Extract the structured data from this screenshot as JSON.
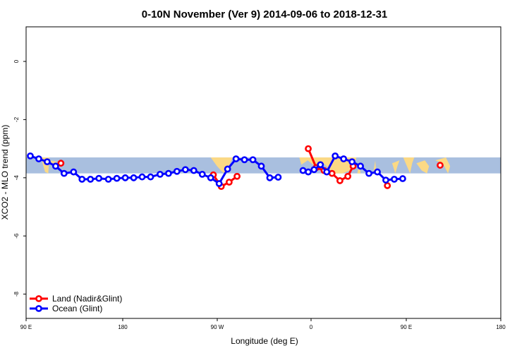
{
  "chart_data": {
    "type": "line",
    "title": "0-10N November (Ver 9)   2014-09-06 to 2018-12-31",
    "xlabel": "Longitude (deg E)",
    "ylabel": "XCO2 - MLO trend (ppm)",
    "xlim": [
      90,
      450
    ],
    "ylim": [
      -9,
      1
    ],
    "x_ticks": [
      {
        "value": 90,
        "label": "90 E"
      },
      {
        "value": 180,
        "label": "180"
      },
      {
        "value": 270,
        "label": "90 W"
      },
      {
        "value": 360,
        "label": "0"
      },
      {
        "value": 450,
        "label": "90 E"
      },
      {
        "value": 540,
        "label": "180"
      }
    ],
    "y_ticks": [
      {
        "value": 0,
        "label": "0"
      },
      {
        "value": -2,
        "label": "-2"
      },
      {
        "value": -4,
        "label": "-4"
      },
      {
        "value": -6,
        "label": "-6"
      },
      {
        "value": -8,
        "label": "-8"
      }
    ],
    "grid": false,
    "legend_position": "bottom-left",
    "background_band": {
      "ymin": -3.85,
      "ymax": -3.3,
      "ocean_color": "#a9bfdf",
      "land_color": "#fbd985"
    },
    "series": [
      {
        "name": "Land (Nadir&Glint)",
        "color": "#ff0000",
        "segments": [
          [
            [
              123,
              -3.5
            ]
          ],
          [
            [
              267.5,
              -3.9
            ],
            [
              275,
              -4.3
            ],
            [
              282.5,
              -4.15
            ],
            [
              290,
              -3.95
            ]
          ],
          [
            [
              357.5,
              -3.0
            ],
            [
              365,
              -3.65
            ],
            [
              372.5,
              -3.75
            ],
            [
              380,
              -3.85
            ],
            [
              387.5,
              -4.1
            ],
            [
              395,
              -3.95
            ],
            [
              400,
              -3.6
            ]
          ],
          [
            [
              432.5,
              -4.27
            ]
          ],
          [
            [
              482.5,
              -3.57
            ]
          ]
        ]
      },
      {
        "name": "Ocean (Glint)",
        "color": "#0000ff",
        "segments": [
          [
            [
              94,
              -3.25
            ],
            [
              102,
              -3.35
            ],
            [
              110,
              -3.45
            ],
            [
              118,
              -3.6
            ],
            [
              126,
              -3.85
            ],
            [
              135,
              -3.8
            ],
            [
              143,
              -4.05
            ],
            [
              151,
              -4.05
            ],
            [
              159,
              -4.02
            ],
            [
              168,
              -4.05
            ],
            [
              176,
              -4.02
            ],
            [
              184,
              -4.0
            ],
            [
              192,
              -4.0
            ],
            [
              200,
              -3.97
            ],
            [
              208,
              -3.97
            ],
            [
              217,
              -3.88
            ],
            [
              225,
              -3.85
            ],
            [
              233,
              -3.78
            ],
            [
              241,
              -3.72
            ],
            [
              249,
              -3.75
            ],
            [
              257,
              -3.88
            ],
            [
              265,
              -4.0
            ],
            [
              273,
              -4.2
            ],
            [
              281,
              -3.7
            ],
            [
              289,
              -3.35
            ],
            [
              297,
              -3.38
            ],
            [
              305,
              -3.38
            ],
            [
              313,
              -3.6
            ],
            [
              321,
              -4.0
            ],
            [
              329,
              -3.98
            ]
          ],
          [
            [
              352.5,
              -3.75
            ],
            [
              357.5,
              -3.8
            ],
            [
              363,
              -3.72
            ],
            [
              369,
              -3.55
            ],
            [
              375,
              -3.8
            ],
            [
              383,
              -3.25
            ],
            [
              391,
              -3.35
            ],
            [
              399,
              -3.45
            ],
            [
              407,
              -3.6
            ],
            [
              415,
              -3.85
            ],
            [
              423,
              -3.8
            ],
            [
              431,
              -4.08
            ],
            [
              439,
              -4.05
            ],
            [
              447,
              -4.03
            ]
          ]
        ]
      }
    ],
    "land_regions": [
      [
        [
          104,
          -3.3
        ],
        [
          108,
          -3.8
        ],
        [
          111,
          -3.85
        ],
        [
          112,
          -3.3
        ]
      ],
      [
        [
          113,
          -3.4
        ],
        [
          117,
          -3.7
        ],
        [
          119,
          -3.45
        ]
      ],
      [
        [
          265,
          -3.3
        ],
        [
          268,
          -3.45
        ],
        [
          271,
          -3.6
        ],
        [
          276,
          -3.8
        ],
        [
          279,
          -3.85
        ],
        [
          282,
          -3.6
        ],
        [
          286,
          -3.3
        ]
      ],
      [
        [
          349,
          -3.3
        ],
        [
          351,
          -3.55
        ],
        [
          357,
          -3.4
        ],
        [
          362,
          -3.55
        ],
        [
          372,
          -3.5
        ],
        [
          382,
          -3.85
        ],
        [
          390,
          -3.85
        ],
        [
          397,
          -3.75
        ],
        [
          402,
          -3.5
        ],
        [
          403,
          -3.3
        ]
      ],
      [
        [
          404,
          -3.85
        ],
        [
          406,
          -3.5
        ],
        [
          407,
          -3.85
        ]
      ],
      [
        [
          419,
          -3.85
        ],
        [
          421,
          -3.4
        ],
        [
          422,
          -3.85
        ]
      ],
      [
        [
          437,
          -3.5
        ],
        [
          440,
          -3.85
        ],
        [
          442,
          -3.6
        ],
        [
          444,
          -3.4
        ]
      ],
      [
        [
          447.5,
          -3.3
        ],
        [
          451,
          -3.6
        ],
        [
          454,
          -3.85
        ],
        [
          456,
          -3.5
        ],
        [
          458,
          -3.3
        ]
      ],
      [
        [
          460,
          -3.5
        ],
        [
          465,
          -3.75
        ],
        [
          470,
          -3.85
        ],
        [
          472,
          -3.6
        ],
        [
          468,
          -3.4
        ]
      ],
      [
        [
          478,
          -3.4
        ],
        [
          485,
          -3.5
        ],
        [
          490,
          -3.85
        ],
        [
          492,
          -3.6
        ],
        [
          488,
          -3.3
        ]
      ]
    ]
  }
}
